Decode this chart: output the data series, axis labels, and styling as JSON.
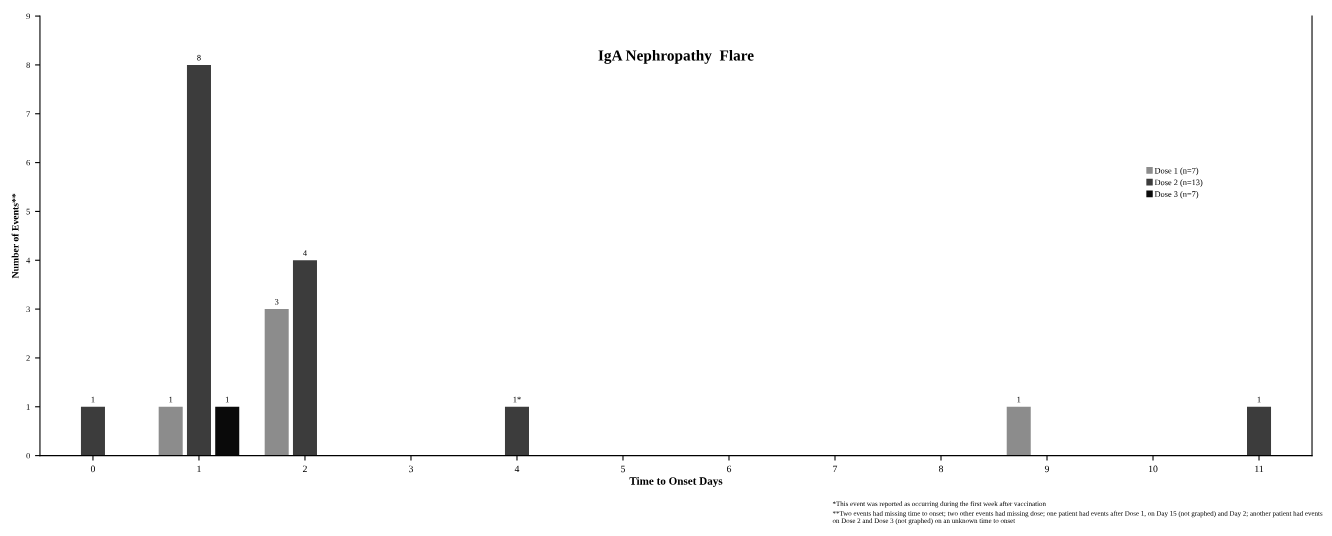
{
  "chart_data": {
    "type": "bar",
    "title": "IgA Nephropathy  Flare",
    "xlabel": "Time to Onset Days",
    "ylabel": "Number of Events**",
    "categories": [
      "0",
      "1",
      "2",
      "3",
      "4",
      "5",
      "6",
      "7",
      "8",
      "9",
      "10",
      "11"
    ],
    "series": [
      {
        "name": "Dose 1 (n=7)",
        "color": "#8c8c8c",
        "values": [
          null,
          1,
          3,
          null,
          null,
          null,
          null,
          null,
          null,
          1,
          null,
          null
        ],
        "value_labels": [
          null,
          "1",
          "3",
          null,
          null,
          null,
          null,
          null,
          null,
          "1",
          null,
          null
        ]
      },
      {
        "name": "Dose 2 (n=13)",
        "color": "#3c3c3c",
        "values": [
          1,
          8,
          4,
          null,
          1,
          null,
          null,
          null,
          null,
          null,
          null,
          1
        ],
        "value_labels": [
          "1",
          "8",
          "4",
          null,
          "1*",
          null,
          null,
          null,
          null,
          null,
          null,
          "1"
        ]
      },
      {
        "name": "Dose 3 (n=7)",
        "color": "#0a0a0a",
        "values": [
          null,
          1,
          null,
          null,
          null,
          null,
          null,
          null,
          null,
          null,
          null,
          null
        ],
        "value_labels": [
          null,
          "1",
          null,
          null,
          null,
          null,
          null,
          null,
          null,
          null,
          null,
          null
        ]
      }
    ],
    "ylim": [
      0,
      9
    ],
    "yticks": [
      0,
      1,
      2,
      3,
      4,
      5,
      6,
      7,
      8,
      9
    ],
    "grid": false,
    "legend": "right",
    "annotations": [
      "*This event was reported as occurring during the first week after vaccination",
      "**Two events had missing time to onset; two other events had missing dose; one patient had events after Dose 1, on Day 15 (not graphed) and Day 2; another patient had events on Dose 2 and Dose 3 (not graphed) on an unknown time to onset"
    ]
  }
}
